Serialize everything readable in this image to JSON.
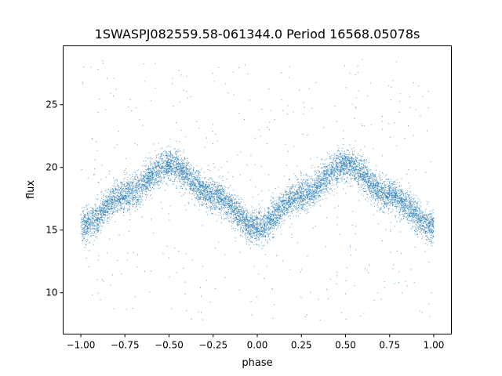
{
  "chart_data": {
    "type": "scatter",
    "title": "1SWASPJ082559.58-061344.0 Period 16568.05078s",
    "xlabel": "phase",
    "ylabel": "flux",
    "xlim": [
      -1.1,
      1.1
    ],
    "ylim": [
      6.7,
      29.7
    ],
    "xticks": [
      -1.0,
      -0.75,
      -0.5,
      -0.25,
      0.0,
      0.25,
      0.5,
      0.75,
      1.0
    ],
    "xtick_labels": [
      "−1.00",
      "−0.75",
      "−0.50",
      "−0.25",
      "0.00",
      "0.25",
      "0.50",
      "0.75",
      "1.00"
    ],
    "yticks": [
      10,
      15,
      20,
      25
    ],
    "ytick_labels": [
      "10",
      "15",
      "20",
      "25"
    ],
    "grid": false,
    "legend": "none",
    "point_color": "#1f77b4",
    "series": [
      {
        "description_shape": "double-humped sinusoid repeated over phase -1 to 1",
        "x_range": [
          -1.0,
          1.0
        ],
        "trend_points": [
          {
            "x": -1.0,
            "y": 15.3
          },
          {
            "x": -0.75,
            "y": 17.8
          },
          {
            "x": -0.5,
            "y": 20.2
          },
          {
            "x": -0.25,
            "y": 17.8
          },
          {
            "x": 0.0,
            "y": 15.2
          },
          {
            "x": 0.25,
            "y": 17.8
          },
          {
            "x": 0.5,
            "y": 20.2
          },
          {
            "x": 0.75,
            "y": 17.8
          },
          {
            "x": 1.0,
            "y": 15.3
          }
        ],
        "scatter_spread": 0.9,
        "outlier_range": [
          7.8,
          28.7
        ]
      }
    ]
  }
}
